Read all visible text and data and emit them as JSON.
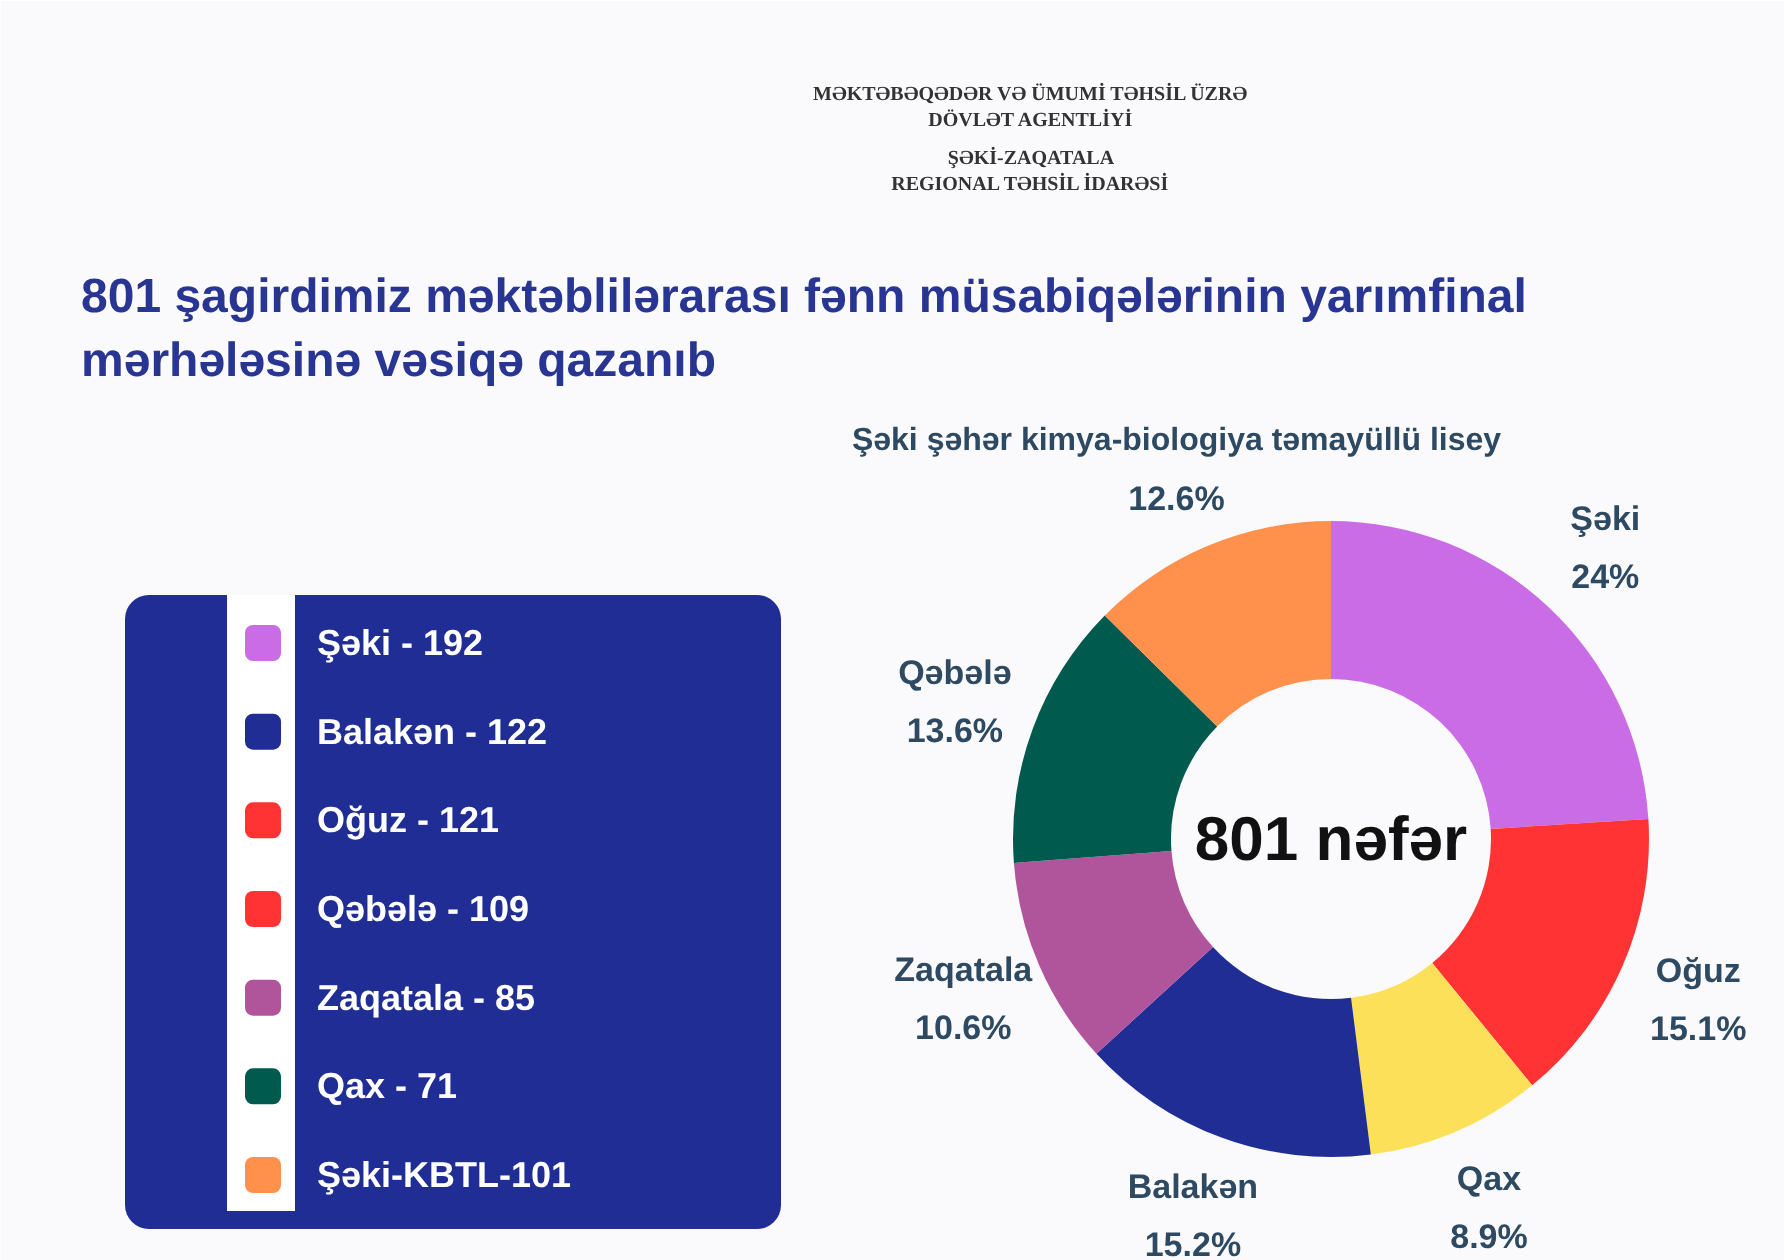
{
  "chart_data": [
    {
      "type": "donut",
      "title": "801 şagirdimiz məktəblilərarası fənn müsabiqələrinin yarımfinal\nmərhələsinə vəsiqə qazanıb",
      "categories": [
        "Şəki",
        "Oğuz",
        "Qax",
        "Balakən",
        "Zaqatala",
        "Qəbələ",
        "Şəki şəhər kimya-biologiya təmayüllü lisey"
      ],
      "values": [
        24,
        15.1,
        8.9,
        15.2,
        10.6,
        13.6,
        12.6
      ],
      "value_labels": [
        "24%",
        "15.1%",
        "8.9%",
        "15.2%",
        "10.6%",
        "13.6%",
        "12.6%"
      ],
      "colors": [
        "#c96ce6",
        "#ff3333",
        "#fde05a",
        "#1f2d94",
        "#b0549c",
        "#005a4e",
        "#ff914d"
      ],
      "annotations": [
        "801 nəfər",
        "MƏKTƏBƏQƏDƏR VƏ ÜMUMİ TƏHSİL ÜZRƏ\nDÖVLƏT AGENTLİYİ",
        "ŞƏKİ-ZAQATALA\nREGIONAL TƏHSİL İDARƏSİ"
      ]
    },
    {
      "type": "other",
      "categories": [
        "Şəki - 192",
        "Balakən - 122",
        "Oğuz - 121",
        "Qəbələ - 109",
        "Zaqatala - 85",
        "Qax - 71",
        "Şəki-KBTL-101"
      ],
      "colors": [
        "#c96ce6",
        "#1f2d94",
        "#ff3333",
        "#ff3333",
        "#b0549c",
        "#005a4e",
        "#ff914d"
      ]
    }
  ]
}
